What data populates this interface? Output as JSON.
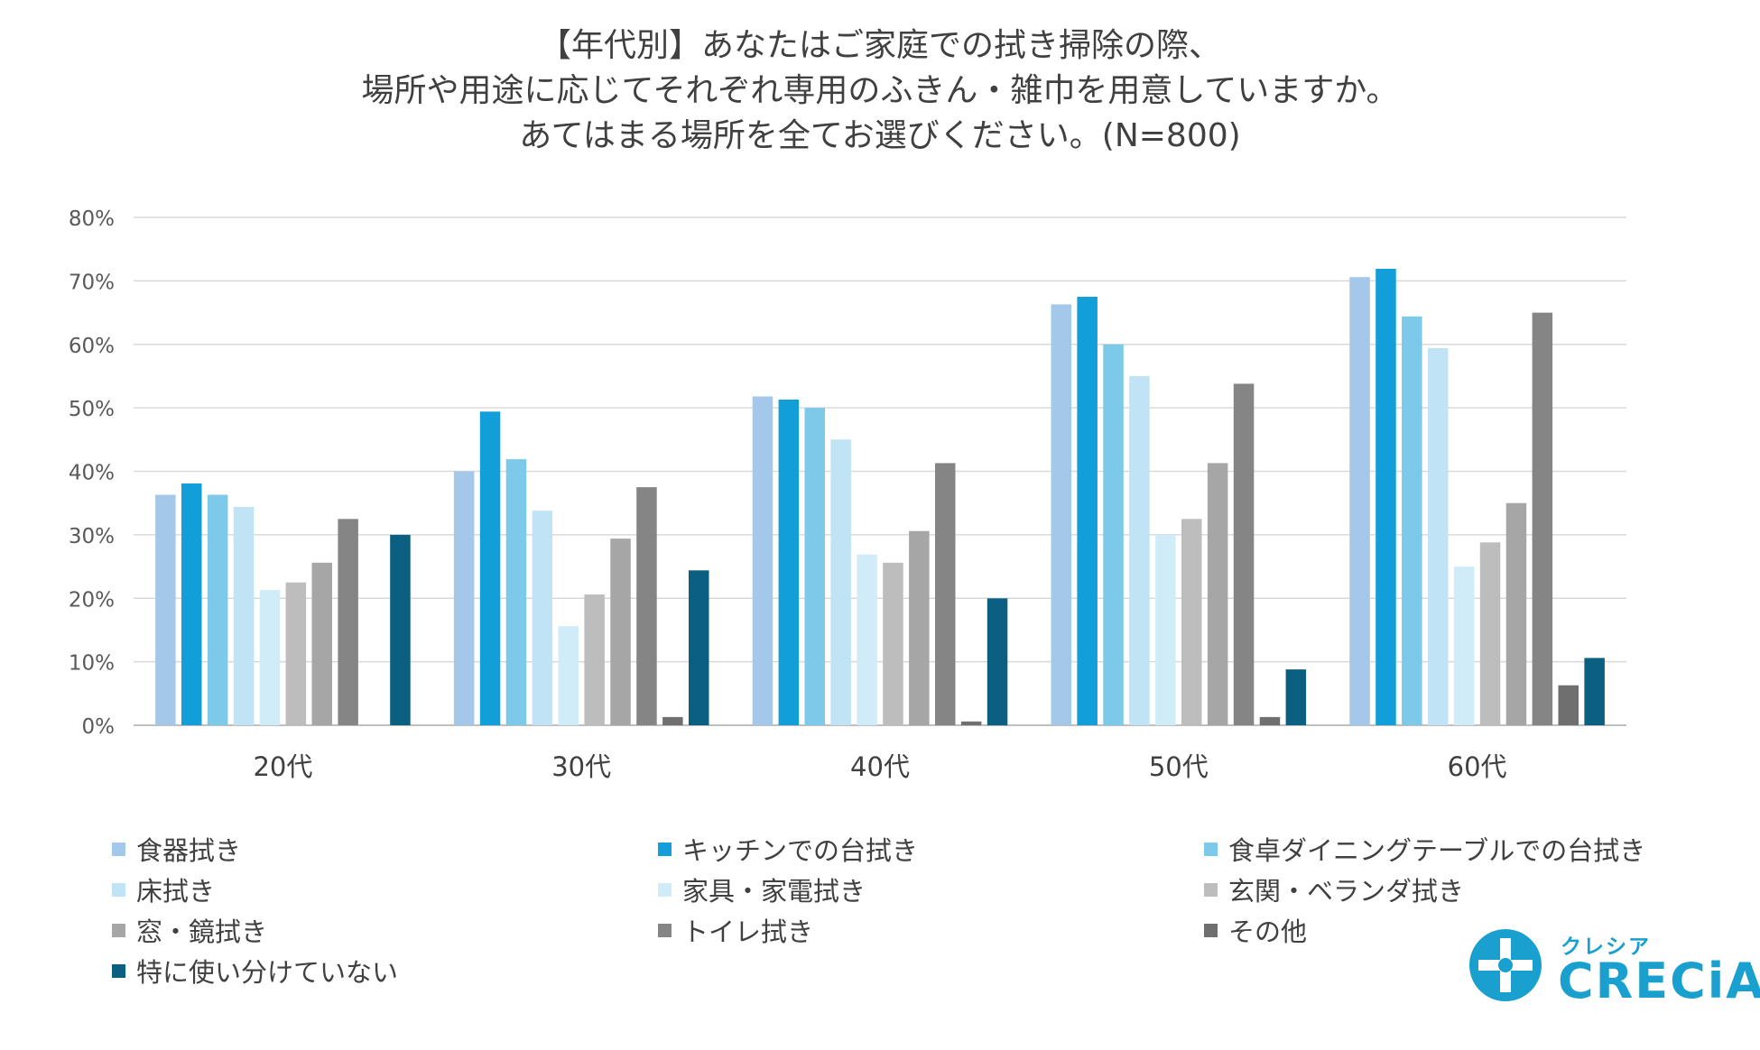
{
  "chart_data": {
    "type": "bar",
    "title_lines": [
      "【年代別】あなたはご家庭での拭き掃除の際、",
      "場所や用途に応じてそれぞれ専用のふきん・雑巾を用意していますか。",
      "あてはまる場所を全てお選びください。(N=800)"
    ],
    "categories": [
      "20代",
      "30代",
      "40代",
      "50代",
      "60代"
    ],
    "y_ticks": [
      "0%",
      "10%",
      "20%",
      "30%",
      "40%",
      "50%",
      "60%",
      "70%",
      "80%"
    ],
    "ylim": [
      0,
      80
    ],
    "grid": true,
    "legend_position": "bottom",
    "series": [
      {
        "name": "食器拭き",
        "color": "#a3c8ea",
        "values": [
          36.3,
          40.0,
          51.8,
          66.3,
          70.6
        ]
      },
      {
        "name": "キッチンでの台拭き",
        "color": "#129fd9",
        "values": [
          38.1,
          49.4,
          51.3,
          67.5,
          71.9
        ]
      },
      {
        "name": "食卓ダイニングテーブルでの台拭き",
        "color": "#7cc9ea",
        "values": [
          36.3,
          41.9,
          50.0,
          60.0,
          64.4
        ]
      },
      {
        "name": "床拭き",
        "color": "#c0e3f5",
        "values": [
          34.4,
          33.8,
          45.0,
          55.0,
          59.4
        ]
      },
      {
        "name": "家具・家電拭き",
        "color": "#d0ecf9",
        "values": [
          21.3,
          15.6,
          26.9,
          30.0,
          25.0
        ]
      },
      {
        "name": "玄関・ベランダ拭き",
        "color": "#bdbdbd",
        "values": [
          22.5,
          20.6,
          25.6,
          32.5,
          28.8
        ]
      },
      {
        "name": "窓・鏡拭き",
        "color": "#a6a6a6",
        "values": [
          25.6,
          29.4,
          30.6,
          41.3,
          35.0
        ]
      },
      {
        "name": "トイレ拭き",
        "color": "#858585",
        "values": [
          32.5,
          37.5,
          41.3,
          53.8,
          65.0
        ]
      },
      {
        "name": "その他",
        "color": "#6f6f6f",
        "values": [
          0.0,
          1.3,
          0.6,
          1.3,
          6.3
        ]
      },
      {
        "name": "特に使い分けていない",
        "color": "#0b5f80",
        "values": [
          30.0,
          24.4,
          20.0,
          8.8,
          10.6
        ]
      }
    ]
  },
  "logo": {
    "kana": "クレシア",
    "word": "CRECiA",
    "color": "#1aa0cf"
  }
}
